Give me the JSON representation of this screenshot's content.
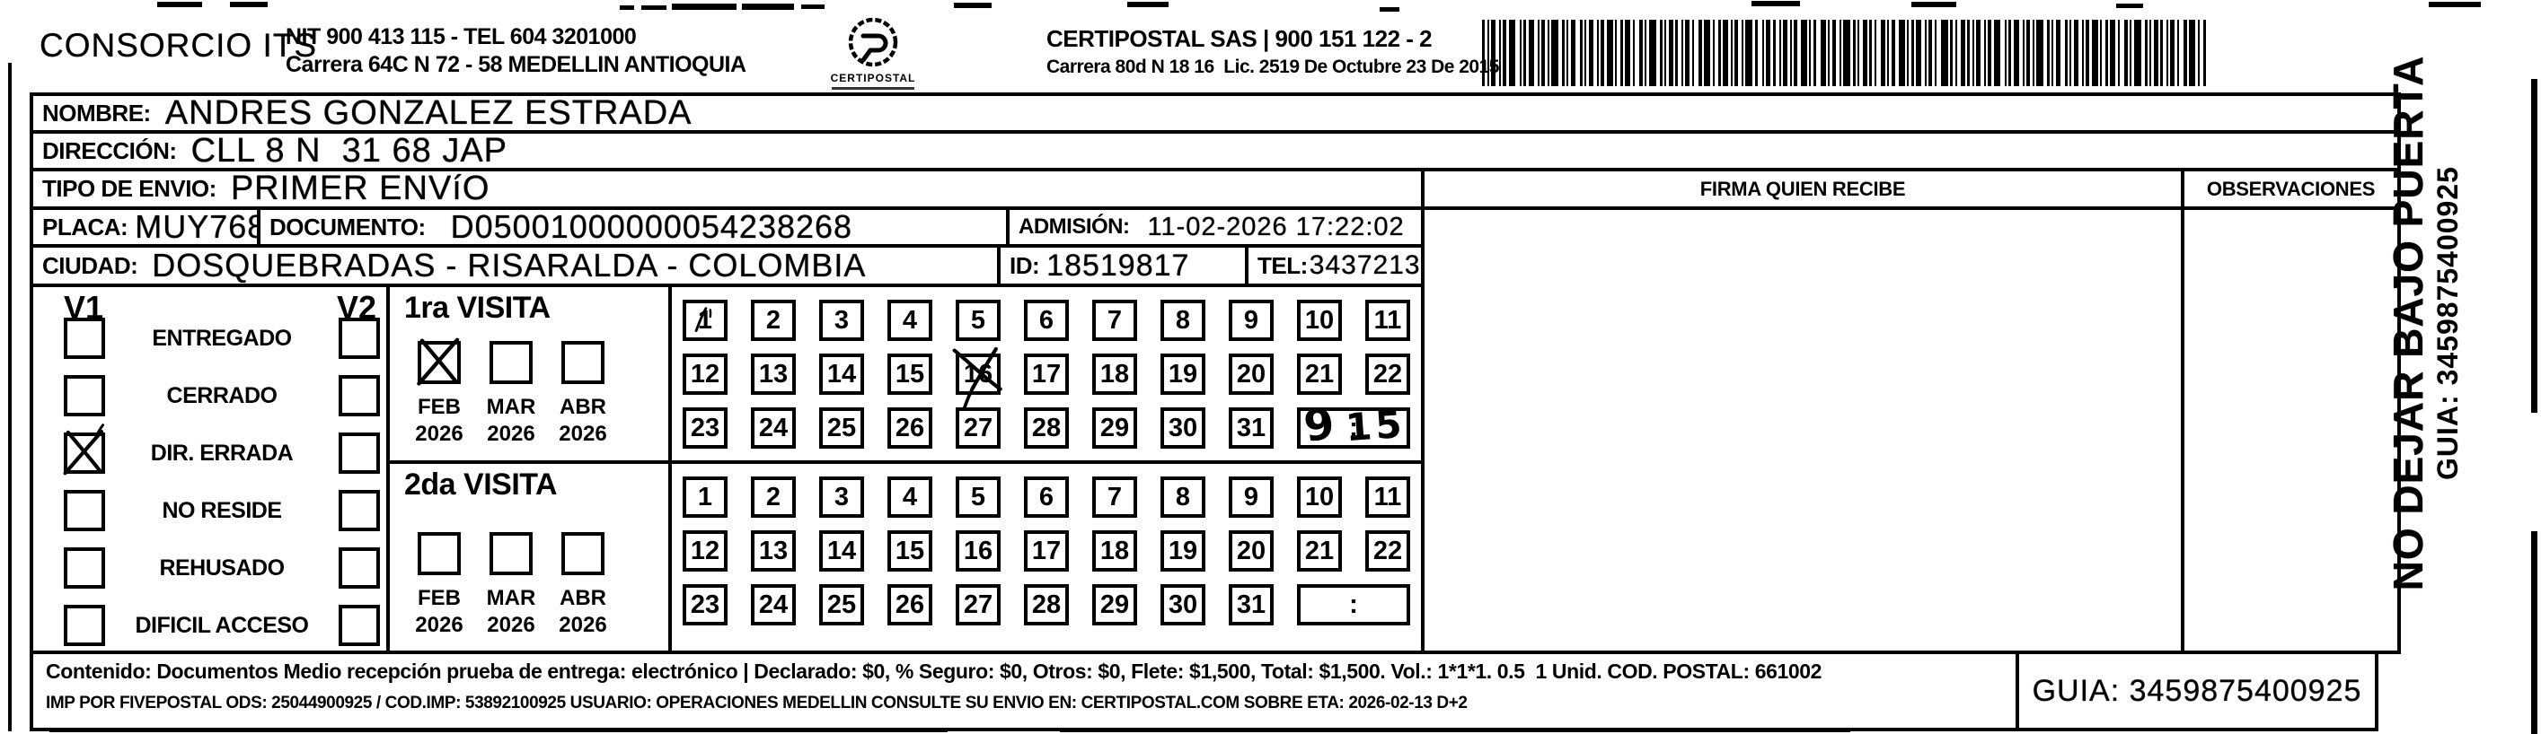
{
  "header": {
    "company_left": "CONSORCIO ITS",
    "left_line1": "NIT 900 413 115 - TEL 604 3201000",
    "left_line2": "Carrera 64C N 72 - 58 MEDELLIN ANTIOQUIA",
    "logo_text": "CERTIPOSTAL",
    "company_right": "CERTIPOSTAL SAS | 900 151 122 - 2",
    "right_line2": "Carrera 80d N 18 16  Lic. 2519 De Octubre 23 De 2015"
  },
  "icons": {
    "logo": "certipostal-stamp-icon",
    "barcode": "barcode-icon"
  },
  "fields": {
    "nombre_label": "NOMBRE:",
    "nombre_value": "ANDRES GONZALEZ ESTRADA",
    "direccion_label": "DIRECCIÓN:",
    "direccion_value": "CLL 8 N  31 68 JAP",
    "tipo_envio_label": "TIPO DE ENVIO:",
    "tipo_envio_value": "PRIMER ENVíO",
    "placa_label": "PLACA:",
    "placa_value": "MUY768",
    "documento_label": "DOCUMENTO:",
    "documento_value": "D05001000000054238268",
    "admision_label": "ADMISIÓN:",
    "admision_value": "11-02-2026 17:22:02",
    "ciudad_label": "CIUDAD:",
    "ciudad_value": "DOSQUEBRADAS - RISARALDA - COLOMBIA",
    "id_label": "ID:",
    "id_value": "18519817",
    "tel_label": "TEL:",
    "tel_value": "3437213"
  },
  "visit_status": {
    "v1_header": "V1",
    "v2_header": "V2",
    "options": [
      {
        "label": "ENTREGADO",
        "v1_checked": false,
        "v2_checked": false
      },
      {
        "label": "CERRADO",
        "v1_checked": false,
        "v2_checked": false
      },
      {
        "label": "DIR. ERRADA",
        "v1_checked": true,
        "v2_checked": false
      },
      {
        "label": "NO RESIDE",
        "v1_checked": false,
        "v2_checked": false
      },
      {
        "label": "REHUSADO",
        "v1_checked": false,
        "v2_checked": false
      },
      {
        "label": "DIFICIL ACCESO",
        "v1_checked": false,
        "v2_checked": false
      }
    ]
  },
  "visits": [
    {
      "title": "1ra VISITA",
      "months": [
        {
          "month": "FEB",
          "year": "2026",
          "checked": true
        },
        {
          "month": "MAR",
          "year": "2026",
          "checked": false
        },
        {
          "month": "ABR",
          "year": "2026",
          "checked": false
        }
      ],
      "day_start": 1,
      "day_end": 31,
      "marked_days": [
        16
      ],
      "scratch_days": [
        1
      ],
      "time": {
        "hour": "9",
        "separator": ":",
        "minutes": "15"
      }
    },
    {
      "title": "2da VISITA",
      "months": [
        {
          "month": "FEB",
          "year": "2026",
          "checked": false
        },
        {
          "month": "MAR",
          "year": "2026",
          "checked": false
        },
        {
          "month": "ABR",
          "year": "2026",
          "checked": false
        }
      ],
      "day_start": 1,
      "day_end": 31,
      "marked_days": [],
      "scratch_days": [],
      "time": {
        "hour": "",
        "separator": ":",
        "minutes": ""
      }
    }
  ],
  "signature": {
    "firma_header": "FIRMA QUIEN RECIBE",
    "observaciones_header": "OBSERVACIONES"
  },
  "side_note": {
    "line1": "NO DEJAR BAJO PUERTA",
    "line2": "GUIA: 3459875400925"
  },
  "footer": {
    "line1": "Contenido: Documentos Medio recepción prueba de entrega: electrónico | Declarado: $0, % Seguro: $0, Otros: $0, Flete: $1,500, Total: $1,500. Vol.: 1*1*1. 0.5  1 Unid. COD. POSTAL: 661002",
    "line2": "IMP POR FIVEPOSTAL ODS: 25044900925 / COD.IMP: 53892100925 USUARIO: OPERACIONES MEDELLIN CONSULTE SU ENVIO EN: CERTIPOSTAL.COM SOBRE ETA: 2026-02-13 D+2",
    "guia_box": "GUIA: 3459875400925"
  },
  "colors": {
    "ink": "#000000",
    "paper": "#ffffff"
  }
}
